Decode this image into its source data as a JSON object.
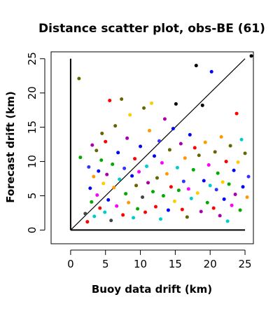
{
  "chart_data": {
    "type": "scatter",
    "title": "Distance scatter plot, obs-BE (61)",
    "xlabel": "Buoy data drift (km)",
    "ylabel": "Forecast drift (km)",
    "xlim": [
      -2.8,
      26.2
    ],
    "ylim": [
      -2.0,
      26.0
    ],
    "x_ticks": [
      0,
      5,
      10,
      15,
      20,
      25
    ],
    "y_ticks": [
      0,
      5,
      10,
      15,
      20,
      25
    ],
    "x_tick_labels": [
      "0",
      "5",
      "10",
      "15",
      "20",
      "25"
    ],
    "y_tick_labels": [
      "0",
      "5",
      "10",
      "15",
      "20",
      "25"
    ],
    "grid": false,
    "legend": "none",
    "reference_lines": [
      {
        "name": "diagonal",
        "x": [
          0,
          25
        ],
        "y": [
          0,
          25
        ]
      },
      {
        "name": "vertical-axis-line",
        "x": [
          0,
          0
        ],
        "y": [
          0,
          25
        ]
      },
      {
        "name": "horizontal-axis-line",
        "x": [
          0,
          25
        ],
        "y": [
          0,
          0
        ]
      }
    ],
    "points": [
      {
        "x": 1.2,
        "y": 22.1,
        "color": "#666600"
      },
      {
        "x": 1.4,
        "y": 10.6,
        "color": "#00aa00"
      },
      {
        "x": 2.1,
        "y": 2.4,
        "color": "#444444"
      },
      {
        "x": 2.4,
        "y": 1.2,
        "color": "#ff0000"
      },
      {
        "x": 2.6,
        "y": 9.2,
        "color": "#3333ff"
      },
      {
        "x": 2.8,
        "y": 6.1,
        "color": "#0000ff"
      },
      {
        "x": 3.0,
        "y": 4.1,
        "color": "#00aa00"
      },
      {
        "x": 3.1,
        "y": 12.4,
        "color": "#aa00aa"
      },
      {
        "x": 3.3,
        "y": 7.8,
        "color": "#ff9900"
      },
      {
        "x": 3.4,
        "y": 2.0,
        "color": "#00cccc"
      },
      {
        "x": 3.7,
        "y": 11.6,
        "color": "#666600"
      },
      {
        "x": 3.8,
        "y": 5.1,
        "color": "#ff00ff"
      },
      {
        "x": 4.0,
        "y": 8.6,
        "color": "#0000ff"
      },
      {
        "x": 4.2,
        "y": 3.2,
        "color": "#ff0000"
      },
      {
        "x": 4.4,
        "y": 10.2,
        "color": "#00aa00"
      },
      {
        "x": 4.5,
        "y": 14.1,
        "color": "#666600"
      },
      {
        "x": 4.7,
        "y": 6.8,
        "color": "#ffcc00"
      },
      {
        "x": 4.9,
        "y": 2.6,
        "color": "#00cccc"
      },
      {
        "x": 5.0,
        "y": 12.9,
        "color": "#ff0000"
      },
      {
        "x": 5.2,
        "y": 8.1,
        "color": "#aa00aa"
      },
      {
        "x": 5.4,
        "y": 4.4,
        "color": "#0000ff"
      },
      {
        "x": 5.6,
        "y": 18.9,
        "color": "#ff0000"
      },
      {
        "x": 5.8,
        "y": 1.4,
        "color": "#444444"
      },
      {
        "x": 6.0,
        "y": 9.6,
        "color": "#00aa00"
      },
      {
        "x": 6.2,
        "y": 6.2,
        "color": "#ff9900"
      },
      {
        "x": 6.4,
        "y": 15.2,
        "color": "#666600"
      },
      {
        "x": 6.6,
        "y": 3.5,
        "color": "#ff00ff"
      },
      {
        "x": 6.8,
        "y": 11.3,
        "color": "#0000ff"
      },
      {
        "x": 7.0,
        "y": 7.4,
        "color": "#00cccc"
      },
      {
        "x": 7.3,
        "y": 19.1,
        "color": "#666600"
      },
      {
        "x": 7.5,
        "y": 2.2,
        "color": "#ff0000"
      },
      {
        "x": 7.7,
        "y": 9.0,
        "color": "#3333ff"
      },
      {
        "x": 7.9,
        "y": 5.3,
        "color": "#00aa00"
      },
      {
        "x": 8.1,
        "y": 13.4,
        "color": "#aa00aa"
      },
      {
        "x": 8.3,
        "y": 4.0,
        "color": "#ff9900"
      },
      {
        "x": 8.5,
        "y": 16.8,
        "color": "#ffcc00"
      },
      {
        "x": 8.8,
        "y": 7.9,
        "color": "#0000ff"
      },
      {
        "x": 9.0,
        "y": 1.8,
        "color": "#00cccc"
      },
      {
        "x": 9.2,
        "y": 10.4,
        "color": "#ff0000"
      },
      {
        "x": 9.4,
        "y": 6.5,
        "color": "#666600"
      },
      {
        "x": 9.6,
        "y": 3.1,
        "color": "#00aa00"
      },
      {
        "x": 9.8,
        "y": 8.5,
        "color": "#ff00ff"
      },
      {
        "x": 10.0,
        "y": 12.2,
        "color": "#0000ff"
      },
      {
        "x": 10.3,
        "y": 4.8,
        "color": "#444444"
      },
      {
        "x": 10.5,
        "y": 17.8,
        "color": "#666600"
      },
      {
        "x": 10.7,
        "y": 2.6,
        "color": "#ff0000"
      },
      {
        "x": 10.9,
        "y": 9.3,
        "color": "#00cccc"
      },
      {
        "x": 11.1,
        "y": 6.9,
        "color": "#aa00aa"
      },
      {
        "x": 11.3,
        "y": 14.5,
        "color": "#ff9900"
      },
      {
        "x": 11.6,
        "y": 18.5,
        "color": "#ffcc00"
      },
      {
        "x": 11.8,
        "y": 5.6,
        "color": "#00aa00"
      },
      {
        "x": 12.0,
        "y": 10.8,
        "color": "#0000ff"
      },
      {
        "x": 12.2,
        "y": 3.4,
        "color": "#ff0000"
      },
      {
        "x": 12.4,
        "y": 7.6,
        "color": "#666600"
      },
      {
        "x": 12.7,
        "y": 13.0,
        "color": "#3333ff"
      },
      {
        "x": 12.9,
        "y": 1.6,
        "color": "#00cccc"
      },
      {
        "x": 13.1,
        "y": 9.8,
        "color": "#ff00ff"
      },
      {
        "x": 13.3,
        "y": 5.0,
        "color": "#00aa00"
      },
      {
        "x": 13.5,
        "y": 16.2,
        "color": "#aa00aa"
      },
      {
        "x": 13.8,
        "y": 8.2,
        "color": "#ff9900"
      },
      {
        "x": 14.0,
        "y": 2.9,
        "color": "#0000ff"
      },
      {
        "x": 14.2,
        "y": 11.7,
        "color": "#666600"
      },
      {
        "x": 14.4,
        "y": 6.3,
        "color": "#ff0000"
      },
      {
        "x": 14.7,
        "y": 14.8,
        "color": "#0000ff"
      },
      {
        "x": 14.9,
        "y": 4.2,
        "color": "#ffcc00"
      },
      {
        "x": 15.1,
        "y": 18.4,
        "color": "#000000"
      },
      {
        "x": 15.3,
        "y": 9.1,
        "color": "#00cccc"
      },
      {
        "x": 15.5,
        "y": 5.8,
        "color": "#00aa00"
      },
      {
        "x": 15.8,
        "y": 12.6,
        "color": "#aa00aa"
      },
      {
        "x": 16.0,
        "y": 3.0,
        "color": "#ff0000"
      },
      {
        "x": 16.2,
        "y": 7.1,
        "color": "#3333ff"
      },
      {
        "x": 16.4,
        "y": 10.5,
        "color": "#ff9900"
      },
      {
        "x": 16.7,
        "y": 1.9,
        "color": "#666600"
      },
      {
        "x": 16.9,
        "y": 6.0,
        "color": "#ff00ff"
      },
      {
        "x": 17.1,
        "y": 13.9,
        "color": "#0000ff"
      },
      {
        "x": 17.3,
        "y": 4.6,
        "color": "#00cccc"
      },
      {
        "x": 17.6,
        "y": 8.8,
        "color": "#00aa00"
      },
      {
        "x": 17.8,
        "y": 12.0,
        "color": "#ff0000"
      },
      {
        "x": 18.0,
        "y": 24.0,
        "color": "#000000"
      },
      {
        "x": 18.2,
        "y": 5.4,
        "color": "#ffcc00"
      },
      {
        "x": 18.4,
        "y": 10.9,
        "color": "#666600"
      },
      {
        "x": 18.7,
        "y": 2.7,
        "color": "#aa00aa"
      },
      {
        "x": 18.9,
        "y": 18.2,
        "color": "#000000"
      },
      {
        "x": 19.1,
        "y": 7.2,
        "color": "#0000ff"
      },
      {
        "x": 19.3,
        "y": 12.8,
        "color": "#ff9900"
      },
      {
        "x": 19.6,
        "y": 4.0,
        "color": "#00aa00"
      },
      {
        "x": 19.8,
        "y": 9.5,
        "color": "#ff00ff"
      },
      {
        "x": 20.0,
        "y": 6.5,
        "color": "#00cccc"
      },
      {
        "x": 20.2,
        "y": 23.1,
        "color": "#0000ff"
      },
      {
        "x": 20.5,
        "y": 3.2,
        "color": "#ff0000"
      },
      {
        "x": 20.7,
        "y": 11.4,
        "color": "#666600"
      },
      {
        "x": 20.9,
        "y": 5.9,
        "color": "#3333ff"
      },
      {
        "x": 21.1,
        "y": 8.3,
        "color": "#00aa00"
      },
      {
        "x": 21.4,
        "y": 2.1,
        "color": "#aa00aa"
      },
      {
        "x": 21.6,
        "y": 13.6,
        "color": "#ff9900"
      },
      {
        "x": 21.8,
        "y": 7.0,
        "color": "#ffcc00"
      },
      {
        "x": 22.0,
        "y": 4.5,
        "color": "#0000ff"
      },
      {
        "x": 22.3,
        "y": 10.0,
        "color": "#ff0000"
      },
      {
        "x": 22.5,
        "y": 1.3,
        "color": "#00cccc"
      },
      {
        "x": 22.7,
        "y": 6.7,
        "color": "#00aa00"
      },
      {
        "x": 22.9,
        "y": 12.3,
        "color": "#666600"
      },
      {
        "x": 23.1,
        "y": 3.6,
        "color": "#ff00ff"
      },
      {
        "x": 23.4,
        "y": 8.7,
        "color": "#0000ff"
      },
      {
        "x": 23.6,
        "y": 5.2,
        "color": "#aa00aa"
      },
      {
        "x": 23.8,
        "y": 17.0,
        "color": "#ff0000"
      },
      {
        "x": 24.0,
        "y": 9.9,
        "color": "#ffcc00"
      },
      {
        "x": 24.3,
        "y": 2.9,
        "color": "#00aa00"
      },
      {
        "x": 24.5,
        "y": 13.2,
        "color": "#00cccc"
      },
      {
        "x": 24.7,
        "y": 6.3,
        "color": "#0000ff"
      },
      {
        "x": 25.0,
        "y": 11.2,
        "color": "#666600"
      },
      {
        "x": 25.3,
        "y": 4.8,
        "color": "#ff9900"
      },
      {
        "x": 25.5,
        "y": 7.8,
        "color": "#3333ff"
      },
      {
        "x": 25.9,
        "y": 25.4,
        "color": "#000000"
      }
    ]
  }
}
